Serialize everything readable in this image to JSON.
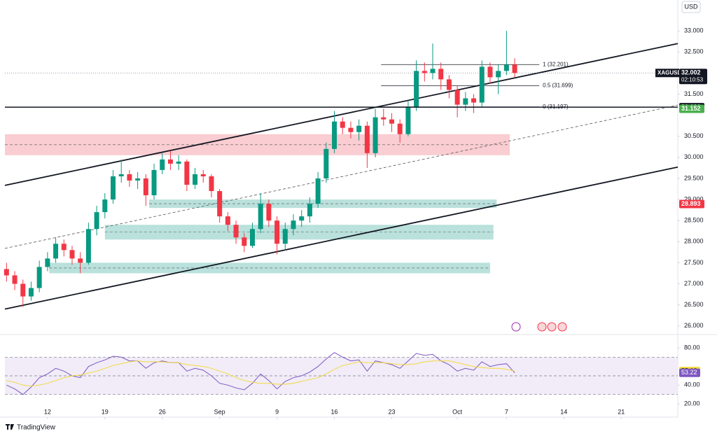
{
  "chart_data": [
    {
      "type": "candlestick",
      "symbol": "XAGUSD",
      "currency": "USD",
      "countdown": "02:10:53",
      "brand": "TradingView",
      "up_color": "#089981",
      "down_color": "#f23645",
      "xlim": [
        -5.2,
        76.9
      ],
      "ylim": [
        25.83,
        33.65
      ],
      "yticks": [
        {
          "value": 26,
          "label": "26.000"
        },
        {
          "value": 26.5,
          "label": "26.500"
        },
        {
          "value": 27,
          "label": "27.000"
        },
        {
          "value": 27.5,
          "label": "27.500"
        },
        {
          "value": 28,
          "label": "28.000"
        },
        {
          "value": 28.5,
          "label": "28.500"
        },
        {
          "value": 29,
          "label": "29.000"
        },
        {
          "value": 29.5,
          "label": "29.500"
        },
        {
          "value": 30,
          "label": "30.000"
        },
        {
          "value": 30.5,
          "label": "30.500"
        },
        {
          "value": 31.5,
          "label": "31.500"
        },
        {
          "value": 32.5,
          "label": "32.500"
        },
        {
          "value": 33,
          "label": "33.000"
        }
      ],
      "grid": false,
      "x": [
        -5,
        -4,
        -3,
        -2,
        -1,
        0,
        1,
        2,
        3,
        4,
        5,
        6,
        7,
        8,
        9,
        10,
        11,
        12,
        13,
        14,
        15,
        16,
        17,
        18,
        19,
        20,
        21,
        22,
        23,
        24,
        25,
        26,
        27,
        28,
        29,
        30,
        31,
        32,
        33,
        34,
        35,
        36,
        37,
        38,
        39,
        40,
        41,
        42,
        43,
        44,
        45,
        46,
        47,
        48,
        49,
        50,
        51,
        52,
        53,
        54,
        55,
        56,
        57
      ],
      "open": [
        27.35,
        27.2,
        27.0,
        26.7,
        26.9,
        27.4,
        27.6,
        27.95,
        27.8,
        27.6,
        27.5,
        28.3,
        28.7,
        29.0,
        29.55,
        29.6,
        29.45,
        29.5,
        29.1,
        29.7,
        29.95,
        29.85,
        29.9,
        29.35,
        29.6,
        29.55,
        29.2,
        28.6,
        28.4,
        28.1,
        27.9,
        28.3,
        28.9,
        28.5,
        27.95,
        28.3,
        28.5,
        28.6,
        28.9,
        29.5,
        30.2,
        30.85,
        30.7,
        30.6,
        30.75,
        30.1,
        30.95,
        30.9,
        30.8,
        30.55,
        31.2,
        32.05,
        32.0,
        32.1,
        31.85,
        31.6,
        31.25,
        31.4,
        31.3,
        32.15,
        31.9,
        32.05,
        32.2
      ],
      "high": [
        27.5,
        27.3,
        27.1,
        27.05,
        27.55,
        27.75,
        28.1,
        28.05,
        27.9,
        27.75,
        28.45,
        28.85,
        29.15,
        29.7,
        29.95,
        29.7,
        29.65,
        29.6,
        29.85,
        30.1,
        30.15,
        30.05,
        29.95,
        29.75,
        29.7,
        29.6,
        29.25,
        28.7,
        28.5,
        28.2,
        28.45,
        29.15,
        29.0,
        28.6,
        28.45,
        28.65,
        28.75,
        29.05,
        29.65,
        30.35,
        31.1,
        30.95,
        30.85,
        30.9,
        30.85,
        31.15,
        31.15,
        31.05,
        30.9,
        31.35,
        32.3,
        32.25,
        32.7,
        32.25,
        31.95,
        31.7,
        31.55,
        31.5,
        32.3,
        32.25,
        32.2,
        33.0,
        32.35
      ],
      "low": [
        27.05,
        26.85,
        26.45,
        26.6,
        26.8,
        27.3,
        27.5,
        27.65,
        27.45,
        27.25,
        27.45,
        28.15,
        28.55,
        28.9,
        29.4,
        29.3,
        29.25,
        28.85,
        29.0,
        29.6,
        29.7,
        29.7,
        29.2,
        29.25,
        29.4,
        29.05,
        28.45,
        28.25,
        27.95,
        27.75,
        27.85,
        28.2,
        28.35,
        27.7,
        27.8,
        28.15,
        28.35,
        28.45,
        28.8,
        29.4,
        30.1,
        30.55,
        30.45,
        30.4,
        29.75,
        30.0,
        30.75,
        30.6,
        30.35,
        30.5,
        31.1,
        31.8,
        31.85,
        31.6,
        31.4,
        30.95,
        31.1,
        31.05,
        31.2,
        31.75,
        31.5,
        31.95,
        31.9
      ],
      "close": [
        27.2,
        27.0,
        26.7,
        26.9,
        27.4,
        27.6,
        27.95,
        27.8,
        27.6,
        27.5,
        28.3,
        28.7,
        29.0,
        29.55,
        29.6,
        29.45,
        29.5,
        29.1,
        29.7,
        29.95,
        29.85,
        29.9,
        29.35,
        29.6,
        29.55,
        29.2,
        28.6,
        28.4,
        28.1,
        27.9,
        28.3,
        28.9,
        28.5,
        27.95,
        28.3,
        28.5,
        28.6,
        28.9,
        29.5,
        30.2,
        30.85,
        30.7,
        30.6,
        30.75,
        30.1,
        30.95,
        30.9,
        30.8,
        30.55,
        31.2,
        32.05,
        32.0,
        32.1,
        31.85,
        31.6,
        31.25,
        31.4,
        31.3,
        32.15,
        31.9,
        32.05,
        32.2,
        32.002
      ],
      "zones": [
        {
          "x0": -5.2,
          "x1": 56.4,
          "lo": 30.05,
          "hi": 30.55,
          "color": "#f7c0c5"
        },
        {
          "x0": 12.4,
          "x1": 54.8,
          "lo": 28.8,
          "hi": 29.0,
          "color": "#a9dad3"
        },
        {
          "x0": 7.0,
          "x1": 54.4,
          "lo": 28.05,
          "hi": 28.4,
          "color": "#a9dad3"
        },
        {
          "x0": 0.2,
          "x1": 54.0,
          "lo": 27.25,
          "hi": 27.5,
          "color": "#a9dad3"
        }
      ],
      "trend_lines": [
        {
          "x": [
            -5.2,
            76.9
          ],
          "y": [
            29.335,
            32.7
          ],
          "dashed": false
        },
        {
          "x": [
            -5.2,
            76.9
          ],
          "y": [
            26.4,
            29.77
          ],
          "dashed": false
        },
        {
          "x": [
            -5.2,
            76.9
          ],
          "y": [
            27.84,
            31.24
          ],
          "dashed": true
        }
      ],
      "fib_x": [
        40.7,
        60.0
      ],
      "fib_levels": [
        {
          "value": 32.201,
          "label": "1 (32.201)"
        },
        {
          "value": 31.699,
          "label": "0.5 (31.699)"
        },
        {
          "value": 31.197,
          "label": "0 (31.197)"
        }
      ],
      "price_lines": [
        {
          "value": 31.191,
          "color": "#131722",
          "line": true
        },
        {
          "value": 31.152,
          "color": "#4caf50",
          "line": false
        },
        {
          "value": 28.893,
          "color": "#f23645",
          "line": false
        }
      ]
    },
    {
      "type": "line",
      "xlim": [
        -5.2,
        76.9
      ],
      "ylim": [
        8.75,
        92.75
      ],
      "yticks": [
        {
          "value": 20,
          "label": "20.00"
        },
        {
          "value": 40,
          "label": "40.00"
        },
        {
          "value": 80,
          "label": "80.00"
        }
      ],
      "xticks": [
        {
          "value": 0,
          "label": "12"
        },
        {
          "value": 7,
          "label": "19"
        },
        {
          "value": 14,
          "label": "26"
        },
        {
          "value": 21,
          "label": "Sep"
        },
        {
          "value": 28,
          "label": "9"
        },
        {
          "value": 35,
          "label": "16"
        },
        {
          "value": 42,
          "label": "23"
        },
        {
          "value": 50,
          "label": "Oct"
        },
        {
          "value": 56,
          "label": "7"
        },
        {
          "value": 63,
          "label": "14"
        },
        {
          "value": 70,
          "label": "21"
        }
      ],
      "band": [
        30,
        70
      ],
      "band_color": "#ede7f6",
      "levels": [
        30,
        50,
        70
      ],
      "series": [
        {
          "color": "#7e57c2",
          "values": [
            40,
            36,
            30,
            38,
            48,
            52,
            58,
            55,
            50,
            48,
            60,
            64,
            67,
            71,
            70,
            66,
            66,
            58,
            64,
            66,
            64,
            64,
            55,
            58,
            56,
            50,
            42,
            40,
            37,
            35,
            42,
            52,
            45,
            36,
            44,
            48,
            50,
            54,
            60,
            68,
            75,
            70,
            66,
            67,
            55,
            66,
            64,
            62,
            58,
            66,
            74,
            72,
            73,
            66,
            62,
            55,
            58,
            56,
            65,
            60,
            62,
            63,
            53.22
          ]
        },
        {
          "color": "#f5d93b",
          "values": [
            45,
            43,
            40,
            39,
            40,
            42,
            45,
            48,
            50,
            51,
            53,
            55,
            58,
            61,
            63,
            65,
            66,
            65,
            65,
            65,
            64,
            64,
            62,
            61,
            60,
            58,
            55,
            52,
            48,
            45,
            43,
            42,
            42,
            41,
            41,
            42,
            44,
            46,
            48,
            52,
            57,
            61,
            63,
            65,
            64,
            64,
            64,
            63,
            62,
            62,
            63,
            65,
            66,
            66,
            66,
            64,
            62,
            60,
            59,
            58,
            58,
            57,
            55.12
          ]
        }
      ]
    }
  ]
}
